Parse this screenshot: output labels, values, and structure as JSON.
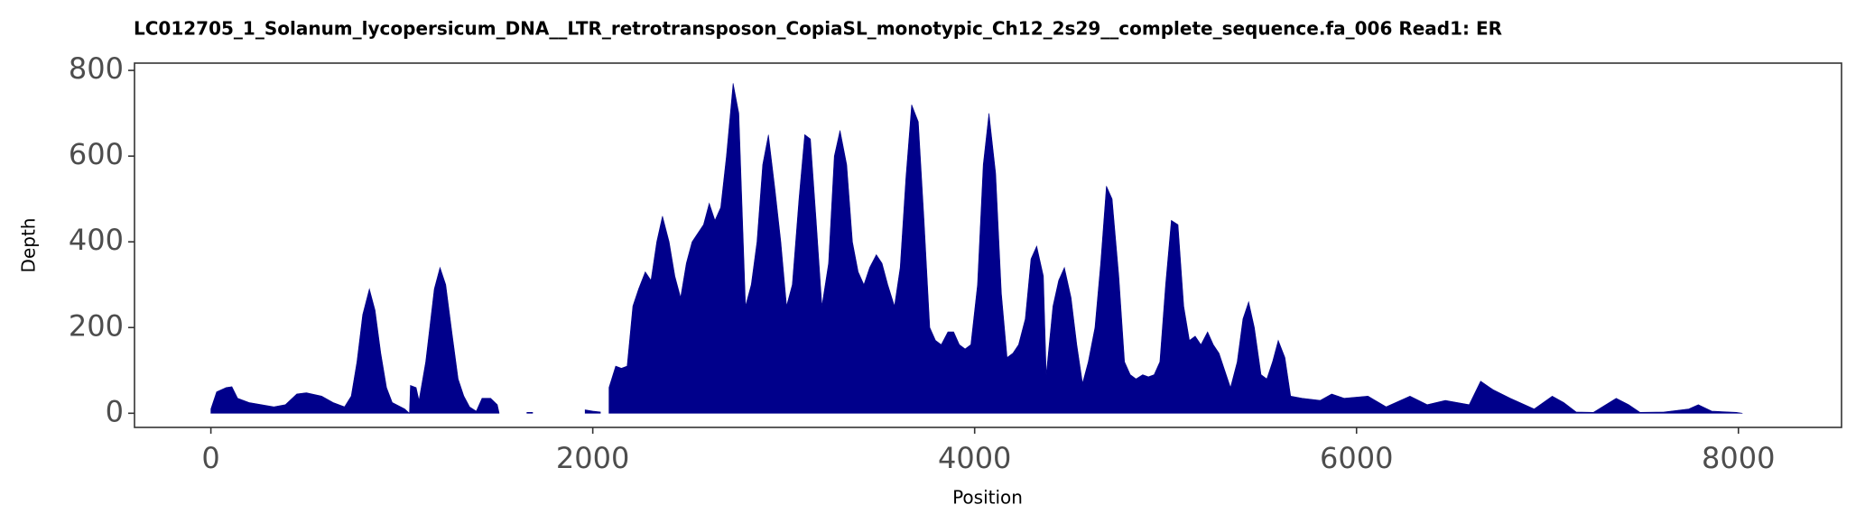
{
  "chart_data": {
    "type": "area",
    "title": "LC012705_1_Solanum_lycopersicum_DNA__LTR_retrotransposon_CopiaSL_monotypic_Ch12_2s29__complete_sequence.fa_006   Read1: ER",
    "x_label": "Position",
    "y_label": "Depth",
    "x": [
      0,
      30,
      80,
      110,
      140,
      200,
      330,
      390,
      450,
      500,
      580,
      640,
      700,
      735,
      765,
      795,
      830,
      860,
      890,
      920,
      950,
      1015,
      1040,
      1045,
      1075,
      1090,
      1125,
      1170,
      1200,
      1230,
      1265,
      1295,
      1325,
      1355,
      1390,
      1420,
      1465,
      1500,
      1510,
      1580,
      1655,
      1685,
      1800,
      1960,
      2000,
      2040,
      2070,
      2085,
      2120,
      2150,
      2180,
      2210,
      2240,
      2275,
      2305,
      2335,
      2365,
      2400,
      2430,
      2460,
      2490,
      2520,
      2550,
      2580,
      2610,
      2640,
      2670,
      2700,
      2735,
      2765,
      2800,
      2830,
      2860,
      2890,
      2920,
      2955,
      2985,
      3015,
      3045,
      3080,
      3110,
      3140,
      3170,
      3200,
      3235,
      3265,
      3295,
      3330,
      3360,
      3390,
      3420,
      3450,
      3485,
      3515,
      3545,
      3580,
      3610,
      3640,
      3670,
      3705,
      3735,
      3765,
      3795,
      3825,
      3860,
      3890,
      3920,
      3950,
      3980,
      4015,
      4045,
      4075,
      4110,
      4140,
      4170,
      4200,
      4230,
      4265,
      4295,
      4325,
      4360,
      4375,
      4410,
      4440,
      4470,
      4505,
      4535,
      4565,
      4595,
      4630,
      4660,
      4690,
      4720,
      4755,
      4785,
      4815,
      4845,
      4880,
      4910,
      4940,
      4970,
      5000,
      5030,
      5065,
      5095,
      5125,
      5155,
      5185,
      5220,
      5250,
      5280,
      5310,
      5340,
      5375,
      5405,
      5435,
      5465,
      5500,
      5530,
      5560,
      5590,
      5625,
      5655,
      5715,
      5810,
      5870,
      5935,
      6060,
      6155,
      6280,
      6370,
      6465,
      6590,
      6650,
      6715,
      6805,
      6930,
      7025,
      7085,
      7150,
      7240,
      7360,
      7425,
      7485,
      7610,
      7740,
      7790,
      7860,
      7990,
      8020
    ],
    "series": [
      {
        "color": "#00008B",
        "values": [
          10,
          50,
          60,
          62,
          35,
          25,
          15,
          20,
          45,
          48,
          40,
          25,
          15,
          40,
          120,
          230,
          290,
          240,
          140,
          60,
          25,
          10,
          0,
          65,
          60,
          30,
          120,
          290,
          340,
          300,
          180,
          80,
          40,
          15,
          5,
          35,
          35,
          20,
          0,
          null,
          2,
          2,
          null,
          8,
          5,
          3,
          null,
          60,
          110,
          105,
          110,
          250,
          290,
          330,
          310,
          400,
          460,
          400,
          320,
          270,
          350,
          400,
          420,
          440,
          490,
          450,
          480,
          600,
          770,
          700,
          250,
          300,
          400,
          580,
          650,
          520,
          400,
          250,
          300,
          500,
          650,
          640,
          450,
          250,
          350,
          600,
          660,
          580,
          400,
          330,
          300,
          340,
          370,
          350,
          300,
          250,
          340,
          550,
          720,
          680,
          450,
          200,
          170,
          160,
          190,
          190,
          160,
          150,
          160,
          300,
          580,
          700,
          560,
          280,
          130,
          140,
          160,
          220,
          360,
          390,
          320,
          90,
          250,
          310,
          340,
          270,
          160,
          70,
          120,
          200,
          350,
          530,
          500,
          320,
          120,
          90,
          80,
          90,
          85,
          90,
          120,
          300,
          450,
          440,
          250,
          170,
          180,
          160,
          190,
          160,
          140,
          100,
          60,
          120,
          220,
          260,
          200,
          90,
          80,
          120,
          170,
          130,
          40,
          35,
          30,
          45,
          35,
          40,
          15,
          40,
          20,
          30,
          20,
          75,
          55,
          35,
          10,
          40,
          25,
          3,
          2,
          35,
          20,
          2,
          3,
          10,
          20,
          5,
          2,
          0
        ]
      }
    ],
    "xlim": [
      -400,
      8540
    ],
    "ylim": [
      -33,
      817
    ],
    "xticks": [
      0,
      2000,
      4000,
      6000,
      8000
    ],
    "yticks": [
      0,
      200,
      400,
      600,
      800
    ]
  }
}
